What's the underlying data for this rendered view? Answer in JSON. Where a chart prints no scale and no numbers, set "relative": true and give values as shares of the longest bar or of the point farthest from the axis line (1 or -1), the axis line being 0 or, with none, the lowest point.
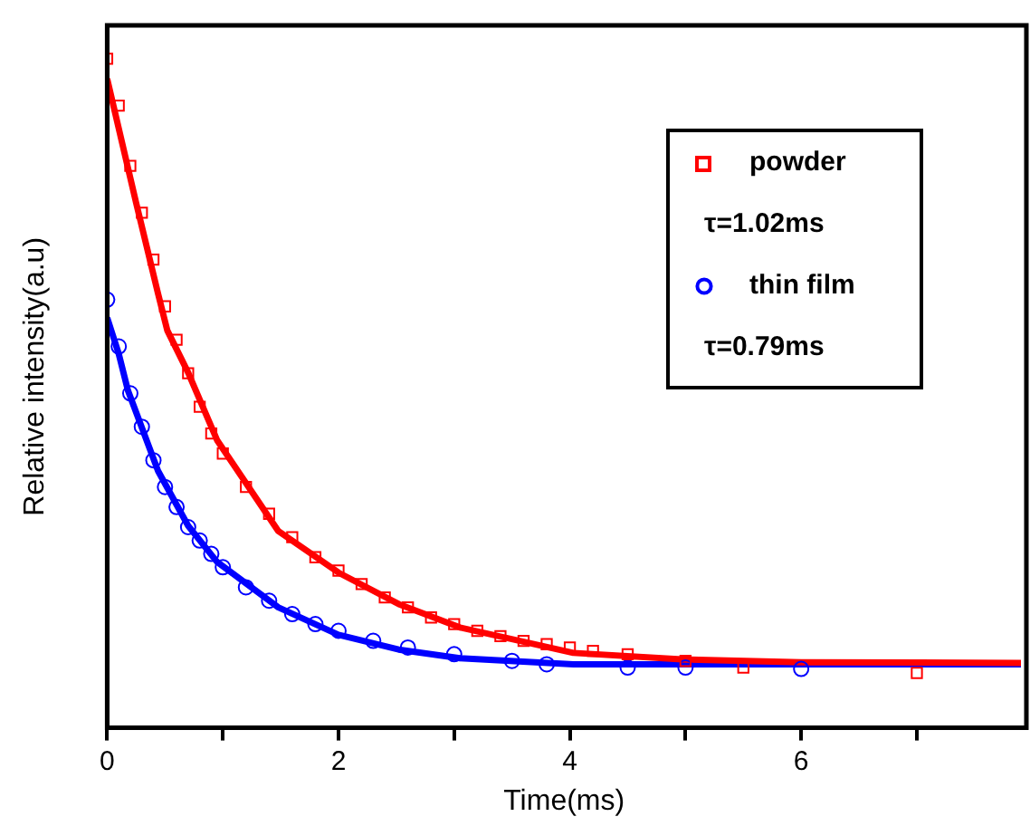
{
  "chart_data": {
    "type": "scatter",
    "relative": true,
    "xlabel": "Time(ms)",
    "ylabel": "Relative intensity(a.u)",
    "xlim": [
      0,
      7.9
    ],
    "xticks": [
      0,
      {
        "value": 1,
        "label": null
      },
      2,
      {
        "value": 3,
        "label": null
      },
      4,
      {
        "value": 5,
        "label": null
      },
      6,
      {
        "value": 7,
        "label": null
      }
    ],
    "grid": false,
    "legend": "top right",
    "annotations": [
      "τ=1.02ms",
      "τ=0.79ms"
    ],
    "series": [
      {
        "name": "powder",
        "type": "scatter",
        "marker": "square",
        "color": "#ff0000",
        "x": [
          0,
          0.1,
          0.2,
          0.3,
          0.4,
          0.5,
          0.6,
          0.7,
          0.8,
          0.9,
          1.0,
          1.2,
          1.4,
          1.6,
          1.8,
          2.0,
          2.2,
          2.4,
          2.6,
          2.8,
          3.0,
          3.2,
          3.4,
          3.6,
          3.8,
          4.0,
          4.2,
          4.5,
          5.0,
          5.5,
          7.0
        ],
        "values": [
          1.0,
          0.93,
          0.84,
          0.77,
          0.7,
          0.63,
          0.58,
          0.53,
          0.48,
          0.44,
          0.41,
          0.36,
          0.32,
          0.285,
          0.255,
          0.235,
          0.215,
          0.195,
          0.18,
          0.165,
          0.155,
          0.145,
          0.137,
          0.13,
          0.125,
          0.12,
          0.115,
          0.11,
          0.1,
          0.09,
          0.082
        ]
      },
      {
        "type": "line",
        "marker": "none",
        "color": "#ff0000",
        "x": [
          0,
          0.25,
          0.44,
          0.52,
          0.7,
          0.95,
          1.48,
          2.0,
          2.52,
          3.05,
          4.03,
          5.0,
          6.0,
          7.9
        ],
        "values": [
          0.97,
          0.785,
          0.649,
          0.594,
          0.531,
          0.43,
          0.294,
          0.232,
          0.185,
          0.15,
          0.112,
          0.102,
          0.098,
          0.097
        ]
      },
      {
        "name": "thin film",
        "type": "scatter",
        "marker": "circle",
        "color": "#0000ff",
        "x": [
          0,
          0.1,
          0.2,
          0.3,
          0.4,
          0.5,
          0.6,
          0.7,
          0.8,
          0.9,
          1.0,
          1.2,
          1.4,
          1.6,
          1.8,
          2.0,
          2.3,
          2.6,
          3.0,
          3.5,
          3.8,
          4.5,
          5.0,
          6.0
        ],
        "values": [
          0.64,
          0.57,
          0.5,
          0.45,
          0.4,
          0.36,
          0.33,
          0.3,
          0.28,
          0.26,
          0.24,
          0.21,
          0.19,
          0.17,
          0.155,
          0.145,
          0.13,
          0.12,
          0.11,
          0.1,
          0.095,
          0.09,
          0.09,
          0.088
        ]
      },
      {
        "type": "line",
        "marker": "none",
        "color": "#0000ff",
        "x": [
          0,
          0.1,
          0.18,
          0.44,
          0.7,
          0.95,
          1.48,
          2.0,
          2.52,
          3.05,
          4.03,
          5.0,
          6.0,
          7.9
        ],
        "values": [
          0.613,
          0.559,
          0.504,
          0.384,
          0.302,
          0.248,
          0.18,
          0.139,
          0.117,
          0.104,
          0.095,
          0.095,
          0.095,
          0.095
        ]
      }
    ]
  }
}
